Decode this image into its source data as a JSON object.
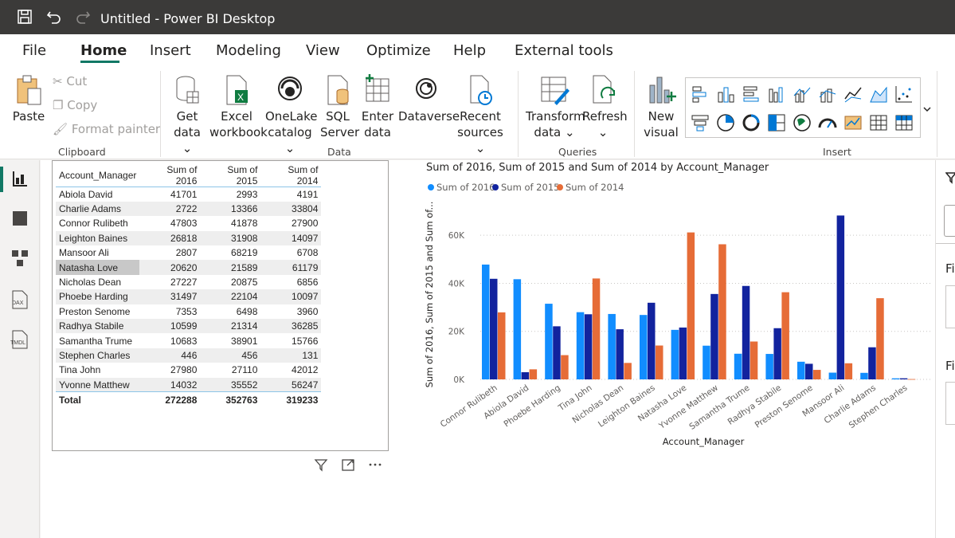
{
  "window": {
    "title": "Untitled - Power BI Desktop"
  },
  "tabs": [
    "File",
    "Home",
    "Insert",
    "Modeling",
    "View",
    "Optimize",
    "Help",
    "External tools"
  ],
  "active_tab": "Home",
  "ribbon": {
    "clipboard": {
      "paste": "Paste",
      "cut": "Cut",
      "copy": "Copy",
      "format_painter": "Format painter",
      "label": "Clipboard"
    },
    "data": {
      "get_data": [
        "Get",
        "data"
      ],
      "excel": [
        "Excel",
        "workbook"
      ],
      "onelake": [
        "OneLake",
        "catalog"
      ],
      "sql": [
        "SQL",
        "Server"
      ],
      "enter": [
        "Enter",
        "data"
      ],
      "dataverse": "Dataverse",
      "recent": [
        "Recent",
        "sources"
      ],
      "label": "Data"
    },
    "queries": {
      "transform": [
        "Transform",
        "data"
      ],
      "refresh": "Refresh",
      "label": "Queries"
    },
    "insert": {
      "new_visual": [
        "New",
        "visual"
      ],
      "label": "Insert"
    }
  },
  "right_pane": {
    "labels": [
      "Fi",
      "Fi"
    ]
  },
  "table": {
    "headers": [
      "Account_Manager",
      "Sum of 2016",
      "Sum of 2015",
      "Sum of 2014"
    ],
    "rows": [
      [
        "Abiola David",
        "41701",
        "2993",
        "4191"
      ],
      [
        "Charlie Adams",
        "2722",
        "13366",
        "33804"
      ],
      [
        "Connor Rulibeth",
        "47803",
        "41878",
        "27900"
      ],
      [
        "Leighton Baines",
        "26818",
        "31908",
        "14097"
      ],
      [
        "Mansoor Ali",
        "2807",
        "68219",
        "6708"
      ],
      [
        "Natasha Love",
        "20620",
        "21589",
        "61179"
      ],
      [
        "Nicholas Dean",
        "27227",
        "20875",
        "6856"
      ],
      [
        "Phoebe Harding",
        "31497",
        "22104",
        "10097"
      ],
      [
        "Preston Senome",
        "7353",
        "6498",
        "3960"
      ],
      [
        "Radhya Stabile",
        "10599",
        "21314",
        "36285"
      ],
      [
        "Samantha Trume",
        "10683",
        "38901",
        "15766"
      ],
      [
        "Stephen Charles",
        "446",
        "456",
        "131"
      ],
      [
        "Tina John",
        "27980",
        "27110",
        "42012"
      ],
      [
        "Yvonne Matthew",
        "14032",
        "35552",
        "56247"
      ]
    ],
    "total": [
      "Total",
      "272288",
      "352763",
      "319233"
    ],
    "selected_row": "Natasha Love"
  },
  "chart_data": {
    "type": "bar",
    "title": "Sum of 2016, Sum of 2015 and Sum of 2014 by Account_Manager",
    "xlabel": "Account_Manager",
    "ylabel": "Sum of 2016, Sum of 2015 and Sum of...",
    "ylim": [
      0,
      72000
    ],
    "yticks": [
      0,
      20000,
      40000,
      60000
    ],
    "ytick_labels": [
      "0K",
      "20K",
      "40K",
      "60K"
    ],
    "legend_position": "top-left",
    "categories": [
      "Connor Rulibeth",
      "Abiola David",
      "Phoebe Harding",
      "Tina John",
      "Nicholas Dean",
      "Leighton Baines",
      "Natasha Love",
      "Yvonne Matthew",
      "Samantha Trume",
      "Radhya Stabile",
      "Preston Senome",
      "Mansoor Ali",
      "Charlie Adams",
      "Stephen Charles"
    ],
    "series": [
      {
        "name": "Sum of 2016",
        "color": "#118dff",
        "values": [
          47803,
          41701,
          31497,
          27980,
          27227,
          26818,
          20620,
          14032,
          10683,
          10599,
          7353,
          2807,
          2722,
          446
        ]
      },
      {
        "name": "Sum of 2015",
        "color": "#12239e",
        "values": [
          41878,
          2993,
          22104,
          27110,
          20875,
          31908,
          21589,
          35552,
          38901,
          21314,
          6498,
          68219,
          13366,
          456
        ]
      },
      {
        "name": "Sum of 2014",
        "color": "#e66c37",
        "values": [
          27900,
          4191,
          10097,
          42012,
          6856,
          14097,
          61179,
          56247,
          15766,
          36285,
          3960,
          6708,
          33804,
          131
        ]
      }
    ]
  }
}
